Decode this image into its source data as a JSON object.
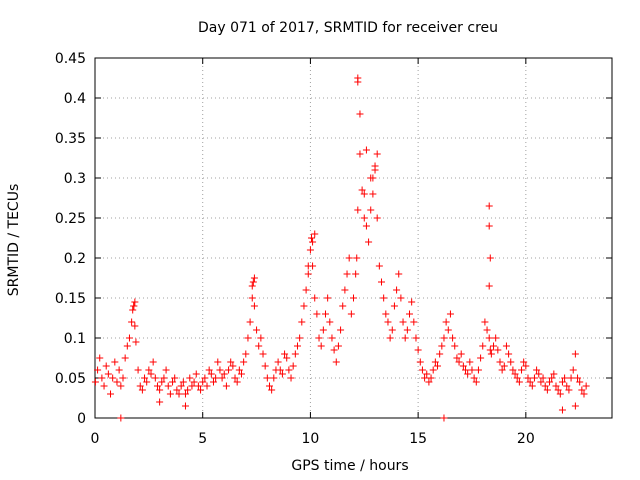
{
  "chart_data": {
    "type": "scatter",
    "title": "Day 071 of 2017, SRMTID for receiver creu",
    "xlabel": "GPS time / hours",
    "ylabel": "SRMTID / TECUs",
    "xlim": [
      0,
      24
    ],
    "ylim": [
      0,
      0.45
    ],
    "xticks": [
      0,
      5,
      10,
      15,
      20
    ],
    "yticks": [
      0,
      0.05,
      0.1,
      0.15,
      0.2,
      0.25,
      0.3,
      0.35,
      0.4,
      0.45
    ],
    "ytick_labels": [
      "0",
      "0.05",
      "0.1",
      "0.15",
      "0.2",
      "0.25",
      "0.3",
      "0.35",
      "0.4",
      "0.45"
    ],
    "grid": true,
    "marker": "+",
    "series": [
      {
        "name": "creu",
        "color": "#ff0000",
        "x": [
          0.02,
          0.12,
          0.22,
          0.32,
          0.42,
          0.52,
          0.62,
          0.72,
          0.82,
          0.92,
          1.02,
          1.12,
          1.2,
          1.3,
          1.4,
          1.5,
          1.6,
          1.7,
          1.75,
          1.8,
          1.85,
          1.9,
          2.0,
          2.1,
          2.2,
          2.3,
          2.4,
          2.5,
          2.6,
          2.7,
          2.8,
          2.9,
          3.0,
          3.1,
          3.2,
          3.3,
          3.4,
          3.5,
          3.6,
          3.7,
          3.8,
          3.9,
          4.0,
          4.1,
          4.2,
          4.3,
          4.4,
          4.5,
          4.6,
          4.7,
          4.8,
          4.9,
          5.0,
          5.1,
          5.2,
          5.3,
          5.4,
          5.5,
          5.6,
          5.7,
          5.8,
          5.9,
          6.0,
          6.1,
          6.2,
          6.3,
          6.4,
          6.5,
          6.6,
          6.7,
          6.8,
          6.9,
          7.0,
          7.1,
          7.2,
          7.3,
          7.35,
          7.4,
          7.5,
          7.6,
          7.7,
          7.8,
          7.9,
          8.0,
          8.1,
          8.2,
          8.3,
          8.4,
          8.5,
          8.6,
          8.7,
          8.8,
          8.9,
          9.0,
          9.1,
          9.2,
          9.3,
          9.4,
          9.5,
          9.6,
          9.7,
          9.8,
          9.9,
          10.0,
          10.05,
          10.1,
          10.2,
          10.3,
          10.4,
          10.5,
          10.6,
          10.7,
          10.8,
          10.9,
          11.0,
          11.1,
          11.2,
          11.3,
          11.4,
          11.5,
          11.6,
          11.7,
          11.8,
          11.9,
          12.0,
          12.1,
          12.15,
          12.2,
          12.3,
          12.4,
          12.5,
          12.6,
          12.7,
          12.8,
          12.9,
          13.0,
          13.1,
          13.2,
          13.3,
          13.4,
          13.5,
          13.6,
          13.7,
          13.8,
          13.9,
          14.0,
          14.1,
          14.2,
          14.3,
          14.4,
          14.5,
          14.6,
          14.7,
          14.8,
          14.9,
          15.0,
          15.1,
          15.2,
          15.3,
          15.4,
          15.5,
          15.6,
          15.7,
          15.8,
          15.9,
          16.0,
          16.1,
          16.2,
          16.3,
          16.4,
          16.5,
          16.6,
          16.7,
          16.8,
          16.9,
          17.0,
          17.1,
          17.2,
          17.3,
          17.4,
          17.5,
          17.6,
          17.7,
          17.8,
          17.9,
          18.0,
          18.1,
          18.2,
          18.3,
          18.35,
          18.4,
          18.5,
          18.6,
          18.7,
          18.8,
          18.9,
          19.0,
          19.1,
          19.2,
          19.3,
          19.4,
          19.5,
          19.6,
          19.7,
          19.8,
          19.9,
          20.0,
          20.1,
          20.2,
          20.3,
          20.4,
          20.5,
          20.6,
          20.7,
          20.8,
          20.9,
          21.0,
          21.1,
          21.2,
          21.3,
          21.4,
          21.5,
          21.6,
          21.7,
          21.8,
          21.9,
          22.0,
          22.1,
          22.2,
          22.3,
          22.4,
          22.5,
          22.6,
          22.7,
          22.8,
          1.2,
          12.2,
          12.2,
          12.3,
          12.6,
          12.8,
          13.0,
          13.1,
          12.9,
          12.5,
          10.2,
          10.1,
          9.9,
          7.4,
          7.3,
          1.85,
          1.8,
          18.3,
          18.3,
          18.35,
          18.3,
          16.2,
          3.0,
          4.2,
          21.7,
          22.3
        ],
        "y": [
          0.045,
          0.06,
          0.075,
          0.05,
          0.04,
          0.065,
          0.055,
          0.03,
          0.05,
          0.07,
          0.045,
          0.06,
          0.04,
          0.05,
          0.075,
          0.09,
          0.1,
          0.12,
          0.135,
          0.14,
          0.115,
          0.095,
          0.06,
          0.04,
          0.035,
          0.05,
          0.045,
          0.06,
          0.055,
          0.07,
          0.05,
          0.04,
          0.035,
          0.045,
          0.05,
          0.06,
          0.04,
          0.03,
          0.045,
          0.05,
          0.035,
          0.03,
          0.04,
          0.045,
          0.03,
          0.035,
          0.05,
          0.04,
          0.045,
          0.055,
          0.04,
          0.035,
          0.045,
          0.05,
          0.04,
          0.06,
          0.055,
          0.045,
          0.05,
          0.07,
          0.06,
          0.05,
          0.055,
          0.04,
          0.06,
          0.07,
          0.065,
          0.05,
          0.045,
          0.06,
          0.055,
          0.07,
          0.08,
          0.1,
          0.12,
          0.15,
          0.17,
          0.14,
          0.11,
          0.09,
          0.1,
          0.08,
          0.065,
          0.05,
          0.04,
          0.035,
          0.05,
          0.06,
          0.07,
          0.06,
          0.055,
          0.08,
          0.075,
          0.06,
          0.05,
          0.065,
          0.08,
          0.09,
          0.1,
          0.12,
          0.14,
          0.16,
          0.18,
          0.21,
          0.225,
          0.19,
          0.15,
          0.13,
          0.1,
          0.09,
          0.11,
          0.13,
          0.15,
          0.12,
          0.1,
          0.085,
          0.07,
          0.09,
          0.11,
          0.14,
          0.16,
          0.18,
          0.2,
          0.13,
          0.15,
          0.18,
          0.2,
          0.26,
          0.33,
          0.285,
          0.28,
          0.24,
          0.22,
          0.26,
          0.3,
          0.315,
          0.25,
          0.19,
          0.17,
          0.15,
          0.13,
          0.12,
          0.1,
          0.11,
          0.14,
          0.16,
          0.18,
          0.15,
          0.12,
          0.1,
          0.11,
          0.13,
          0.145,
          0.12,
          0.1,
          0.085,
          0.07,
          0.06,
          0.05,
          0.055,
          0.045,
          0.05,
          0.06,
          0.07,
          0.065,
          0.08,
          0.09,
          0.1,
          0.12,
          0.11,
          0.13,
          0.1,
          0.09,
          0.075,
          0.07,
          0.08,
          0.065,
          0.06,
          0.055,
          0.07,
          0.06,
          0.05,
          0.045,
          0.06,
          0.075,
          0.09,
          0.12,
          0.11,
          0.1,
          0.085,
          0.08,
          0.09,
          0.1,
          0.085,
          0.07,
          0.06,
          0.065,
          0.09,
          0.08,
          0.07,
          0.06,
          0.055,
          0.05,
          0.045,
          0.06,
          0.07,
          0.065,
          0.05,
          0.045,
          0.04,
          0.05,
          0.06,
          0.055,
          0.045,
          0.05,
          0.04,
          0.035,
          0.045,
          0.05,
          0.055,
          0.04,
          0.035,
          0.03,
          0.045,
          0.05,
          0.04,
          0.035,
          0.05,
          0.06,
          0.08,
          0.05,
          0.045,
          0.035,
          0.03,
          0.04,
          0.0,
          0.42,
          0.425,
          0.38,
          0.335,
          0.3,
          0.31,
          0.33,
          0.28,
          0.25,
          0.23,
          0.22,
          0.19,
          0.175,
          0.165,
          0.145,
          0.14,
          0.265,
          0.24,
          0.2,
          0.165,
          0.0,
          0.02,
          0.015,
          0.01,
          0.015
        ]
      }
    ]
  }
}
